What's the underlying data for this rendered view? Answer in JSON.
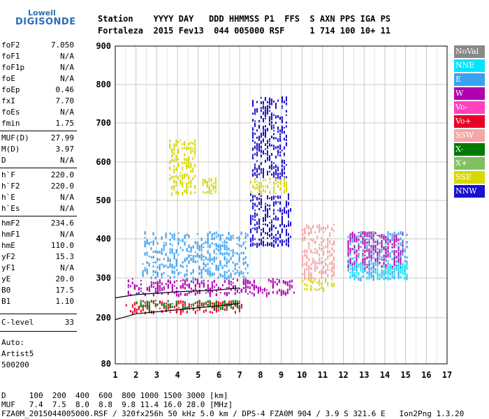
{
  "logo": {
    "line1": "Lowell",
    "line2": "DIGISONDE"
  },
  "header": {
    "line1": "Station    YYYY DAY   DDD HHMMSS P1  FFS  S AXN PPS IGA PS",
    "line2": "Fortaleza  2015 Fev13  044 005000 RSF     1 714 100 10+ 11"
  },
  "params": [
    {
      "name": "foF2",
      "value": "7.050"
    },
    {
      "name": "foF1",
      "value": "N/A"
    },
    {
      "name": "foF1p",
      "value": "N/A"
    },
    {
      "name": "foE",
      "value": "N/A"
    },
    {
      "name": "foEp",
      "value": "0.46"
    },
    {
      "name": "fxI",
      "value": "7.70"
    },
    {
      "name": "foEs",
      "value": "N/A"
    },
    {
      "name": "fmin",
      "value": "1.75"
    },
    {
      "name": "MUF(D)",
      "value": "27.99"
    },
    {
      "name": "M(D)",
      "value": "3.97"
    },
    {
      "name": "D",
      "value": "N/A"
    },
    {
      "name": "h`F",
      "value": "220.0"
    },
    {
      "name": "h`F2",
      "value": "220.0"
    },
    {
      "name": "h`E",
      "value": "N/A"
    },
    {
      "name": "h`Es",
      "value": "N/A"
    },
    {
      "name": "hmF2",
      "value": "234.6"
    },
    {
      "name": "hmF1",
      "value": "N/A"
    },
    {
      "name": "hmE",
      "value": "110.0"
    },
    {
      "name": "yF2",
      "value": "15.3"
    },
    {
      "name": "yF1",
      "value": "N/A"
    },
    {
      "name": "yE",
      "value": "20.0"
    },
    {
      "name": "B0",
      "value": "17.5"
    },
    {
      "name": "B1",
      "value": "1.10"
    },
    {
      "name": "C-level",
      "value": "33"
    }
  ],
  "autoscaling": {
    "line1": "Auto:",
    "line2": "Artist5",
    "line3": "500200"
  },
  "legend": [
    {
      "label": "NoVal",
      "color": "#888888"
    },
    {
      "label": "NNE",
      "color": "#00e5ff"
    },
    {
      "label": "E",
      "color": "#3aa0f0"
    },
    {
      "label": "W",
      "color": "#b000b0"
    },
    {
      "label": "Vo-",
      "color": "#ff40c0"
    },
    {
      "label": "Vo+",
      "color": "#e8002a"
    },
    {
      "label": "SSW",
      "color": "#f5a6a6"
    },
    {
      "label": "X-",
      "color": "#007a00"
    },
    {
      "label": "X+",
      "color": "#80c060"
    },
    {
      "label": "SSE",
      "color": "#d8d800"
    },
    {
      "label": "NNW",
      "color": "#1a10d0"
    }
  ],
  "footer": {
    "d_line": "D     100  200  400  600  800 1000 1500 3000 [km]",
    "muf_line": "MUF   7.4  7.5  8.0  8.8  9.8 11.4 16.0 28.0 [MHz]",
    "file_line": "FZA0M_2015044005000.RSF / 320fx256h 50 kHz 5.0 km / DPS-4 FZA0M 904 / 3.9 S 321.6 E   Ion2Png 1.3.20"
  },
  "chart_data": {
    "type": "scatter",
    "xlim": [
      1,
      17
    ],
    "ylim": [
      80,
      900
    ],
    "x_ticks": [
      "1",
      "2",
      "3",
      "4",
      "5",
      "6",
      "7",
      "8",
      "9",
      "10",
      "11",
      "12",
      "13",
      "14",
      "15",
      "16",
      "17"
    ],
    "y_ticks": [
      "80",
      "200",
      "300",
      "400",
      "500",
      "600",
      "700",
      "800",
      "900"
    ],
    "grid": true,
    "clusters": [
      {
        "series": "NNW",
        "x": [
          7.5,
          9.4
        ],
        "y": [
          390,
          520
        ]
      },
      {
        "series": "NNW",
        "x": [
          7.5,
          9.4
        ],
        "y": [
          385,
          392
        ]
      },
      {
        "series": "NNW",
        "x": [
          7.6,
          9.2
        ],
        "y": [
          560,
          770
        ]
      },
      {
        "series": "SSE",
        "x": [
          3.6,
          4.8
        ],
        "y": [
          520,
          660
        ]
      },
      {
        "series": "SSE",
        "x": [
          5.2,
          5.8
        ],
        "y": [
          520,
          560
        ]
      },
      {
        "series": "SSE",
        "x": [
          7.5,
          9.2
        ],
        "y": [
          520,
          560
        ]
      },
      {
        "series": "E",
        "x": [
          2.3,
          7.3
        ],
        "y": [
          300,
          420
        ]
      },
      {
        "series": "E",
        "x": [
          12.2,
          15.0
        ],
        "y": [
          300,
          420
        ]
      },
      {
        "series": "W",
        "x": [
          1.6,
          9.5
        ],
        "y": [
          260,
          300
        ]
      },
      {
        "series": "W",
        "x": [
          12.2,
          14.8
        ],
        "y": [
          330,
          420
        ]
      },
      {
        "series": "Vo+",
        "x": [
          1.5,
          7.0
        ],
        "y": [
          215,
          245
        ]
      },
      {
        "series": "X-",
        "x": [
          2.0,
          7.0
        ],
        "y": [
          225,
          245
        ]
      },
      {
        "series": "SSE",
        "x": [
          10.0,
          11.5
        ],
        "y": [
          270,
          300
        ]
      },
      {
        "series": "SSW",
        "x": [
          10.0,
          11.5
        ],
        "y": [
          300,
          440
        ]
      },
      {
        "series": "NNE",
        "x": [
          12.2,
          15.0
        ],
        "y": [
          300,
          340
        ]
      }
    ],
    "trace_lines": [
      {
        "points": [
          [
            1,
            195
          ],
          [
            2,
            210
          ],
          [
            4,
            220
          ],
          [
            6,
            230
          ],
          [
            7,
            236
          ]
        ]
      },
      {
        "points": [
          [
            1,
            250
          ],
          [
            2,
            258
          ],
          [
            4,
            265
          ],
          [
            6,
            270
          ],
          [
            7,
            275
          ]
        ]
      }
    ]
  }
}
